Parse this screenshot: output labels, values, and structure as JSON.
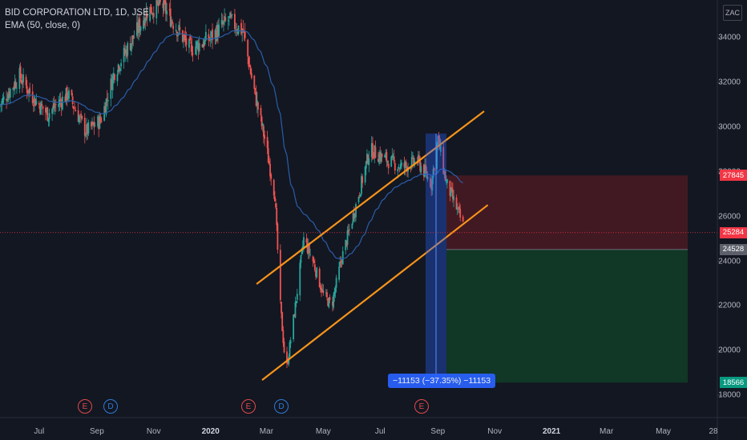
{
  "legend": {
    "symbol": "BID CORPORATION LTD, 1D, JSE",
    "indicator": "EMA (50, close, 0)"
  },
  "currency_button": "ZAC",
  "y_ticks": [
    "34000",
    "32000",
    "30000",
    "28000",
    "26000",
    "24000",
    "22000",
    "20000",
    "18000"
  ],
  "x_ticks": [
    {
      "label": "Jul",
      "bold": false
    },
    {
      "label": "Sep",
      "bold": false
    },
    {
      "label": "Nov",
      "bold": false
    },
    {
      "label": "2020",
      "bold": true
    },
    {
      "label": "Mar",
      "bold": false
    },
    {
      "label": "May",
      "bold": false
    },
    {
      "label": "Jul",
      "bold": false
    },
    {
      "label": "Sep",
      "bold": false
    },
    {
      "label": "Nov",
      "bold": false
    },
    {
      "label": "2021",
      "bold": true
    },
    {
      "label": "Mar",
      "bold": false
    },
    {
      "label": "May",
      "bold": false
    },
    {
      "label": "28",
      "bold": false
    }
  ],
  "price_badges": [
    {
      "label": "27845",
      "value": 27845,
      "color": "#f23645"
    },
    {
      "label": "25284",
      "value": 25284,
      "color": "#f23645"
    },
    {
      "label": "24528",
      "value": 24528,
      "color": "#5d606b"
    },
    {
      "label": "18566",
      "value": 18566,
      "color": "#089981"
    }
  ],
  "events": [
    {
      "label": "E",
      "kind": "earnings",
      "color": "#e04a4a"
    },
    {
      "label": "D",
      "kind": "dividend",
      "color": "#2e7ad6"
    },
    {
      "label": "E",
      "kind": "earnings",
      "color": "#e04a4a"
    },
    {
      "label": "D",
      "kind": "dividend",
      "color": "#2e7ad6"
    },
    {
      "label": "E",
      "kind": "earnings",
      "color": "#e04a4a"
    }
  ],
  "measure_label": "−11153 (−37.35%) −11153",
  "colors": {
    "background": "#131722",
    "up": "#26a69a",
    "down": "#ef5350",
    "ema": "#2a5ea8",
    "channel": "#f7931a",
    "stop_zone": "#4a1a22",
    "target_zone": "#123d27",
    "measure": "#2962ff"
  },
  "chart_data": {
    "type": "candlestick",
    "y_axis_range": [
      17000,
      35700
    ],
    "ema_period": 50,
    "last_price": 25284,
    "position": {
      "stop": 27845,
      "entry": 24528,
      "target": 18566
    },
    "measure": {
      "from": 29719,
      "to": 18566,
      "change": -11153,
      "percent": -37.35
    },
    "series": [
      {
        "name": "price_path",
        "points": [
          [
            "2019-05-20",
            31000
          ],
          [
            "2019-06-10",
            32300
          ],
          [
            "2019-06-25",
            31300
          ],
          [
            "2019-07-10",
            30600
          ],
          [
            "2019-08-01",
            31500
          ],
          [
            "2019-08-20",
            29800
          ],
          [
            "2019-09-05",
            30300
          ],
          [
            "2019-09-20",
            32500
          ],
          [
            "2019-10-10",
            34000
          ],
          [
            "2019-10-25",
            35200
          ],
          [
            "2019-11-10",
            35500
          ],
          [
            "2019-11-25",
            34500
          ],
          [
            "2019-12-10",
            33500
          ],
          [
            "2020-01-01",
            34000
          ],
          [
            "2020-01-20",
            34800
          ],
          [
            "2020-02-05",
            34300
          ],
          [
            "2020-02-15",
            32000
          ],
          [
            "2020-02-28",
            29500
          ],
          [
            "2020-03-10",
            27000
          ],
          [
            "2020-03-16",
            22000
          ],
          [
            "2020-03-22",
            19000
          ],
          [
            "2020-04-01",
            22000
          ],
          [
            "2020-04-10",
            25000
          ],
          [
            "2020-04-20",
            24000
          ],
          [
            "2020-05-01",
            22500
          ],
          [
            "2020-05-10",
            22000
          ],
          [
            "2020-05-20",
            24000
          ],
          [
            "2020-06-05",
            26500
          ],
          [
            "2020-06-20",
            29000
          ],
          [
            "2020-07-10",
            28500
          ],
          [
            "2020-07-25",
            28200
          ],
          [
            "2020-08-10",
            28500
          ],
          [
            "2020-08-25",
            27500
          ],
          [
            "2020-09-01",
            29500
          ],
          [
            "2020-09-10",
            27500
          ],
          [
            "2020-09-20",
            26500
          ],
          [
            "2020-09-28",
            25600
          ]
        ]
      }
    ]
  }
}
